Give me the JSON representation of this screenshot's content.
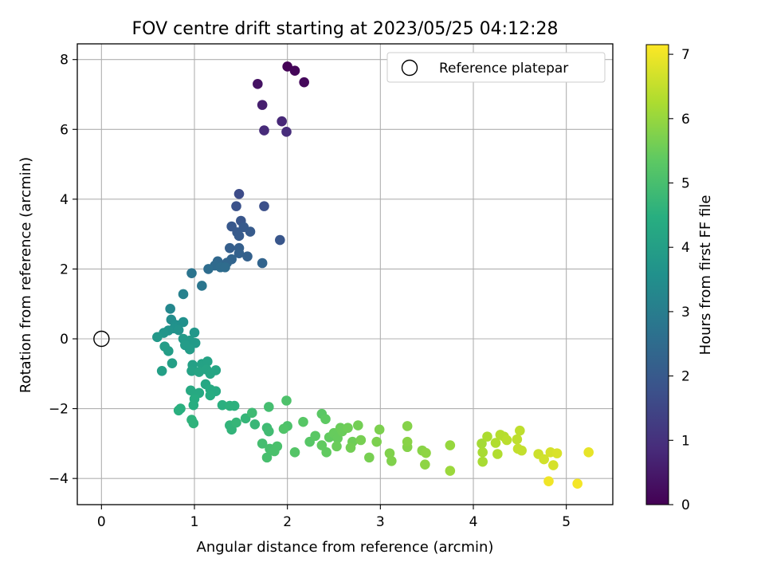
{
  "chart_data": {
    "type": "scatter",
    "title": "FOV centre drift starting at 2023/05/25 04:12:28",
    "xlabel": "Angular distance from reference (arcmin)",
    "ylabel": "Rotation from reference (arcmin)",
    "xlim": [
      -0.26,
      5.5
    ],
    "ylim": [
      -4.75,
      8.45
    ],
    "xticks": [
      0,
      1,
      2,
      3,
      4,
      5
    ],
    "yticks": [
      -4,
      -2,
      0,
      2,
      4,
      6,
      8
    ],
    "grid": true,
    "legend": {
      "entries": [
        "Reference platepar"
      ],
      "placement": "upper right"
    },
    "reference_point": {
      "x": 0,
      "y": 0,
      "label": "Reference platepar"
    },
    "colorbar": {
      "label": "Hours from first FF file",
      "range": [
        0,
        7.15
      ],
      "ticks": [
        0,
        1,
        2,
        3,
        4,
        5,
        6,
        7
      ],
      "colormap": "viridis"
    },
    "points": [
      [
        2.0,
        7.8,
        0.05
      ],
      [
        2.08,
        7.68,
        0.1
      ],
      [
        2.18,
        7.35,
        0.15
      ],
      [
        1.68,
        7.3,
        0.35
      ],
      [
        1.73,
        6.7,
        0.6
      ],
      [
        1.94,
        6.23,
        0.8
      ],
      [
        1.75,
        5.97,
        0.85
      ],
      [
        1.99,
        5.93,
        0.9
      ],
      [
        1.48,
        4.15,
        1.65
      ],
      [
        1.75,
        3.8,
        1.75
      ],
      [
        1.45,
        3.8,
        1.8
      ],
      [
        1.5,
        3.38,
        1.9
      ],
      [
        1.4,
        3.22,
        1.95
      ],
      [
        1.53,
        3.2,
        2.0
      ],
      [
        1.46,
        3.05,
        2.0
      ],
      [
        1.6,
        3.07,
        2.05
      ],
      [
        1.48,
        2.95,
        2.05
      ],
      [
        1.92,
        2.83,
        1.9
      ],
      [
        1.38,
        2.6,
        2.15
      ],
      [
        1.48,
        2.6,
        2.15
      ],
      [
        1.57,
        2.36,
        2.2
      ],
      [
        1.48,
        2.45,
        2.2
      ],
      [
        1.4,
        2.28,
        2.3
      ],
      [
        1.35,
        2.18,
        2.35
      ],
      [
        1.25,
        2.22,
        2.4
      ],
      [
        1.22,
        2.1,
        2.45
      ],
      [
        1.28,
        2.05,
        2.5
      ],
      [
        1.33,
        2.05,
        2.5
      ],
      [
        1.73,
        2.17,
        2.3
      ],
      [
        1.15,
        2.0,
        2.55
      ],
      [
        0.97,
        1.88,
        2.75
      ],
      [
        1.08,
        1.52,
        2.8
      ],
      [
        0.88,
        1.28,
        3.1
      ],
      [
        0.74,
        0.86,
        3.3
      ],
      [
        0.75,
        0.55,
        3.45
      ],
      [
        0.88,
        0.48,
        3.55
      ],
      [
        0.8,
        0.4,
        3.55
      ],
      [
        0.78,
        0.3,
        3.6
      ],
      [
        0.72,
        0.24,
        3.65
      ],
      [
        0.83,
        0.25,
        3.65
      ],
      [
        0.67,
        0.17,
        3.7
      ],
      [
        1.0,
        0.18,
        3.75
      ],
      [
        0.6,
        0.05,
        3.8
      ],
      [
        0.88,
        0.0,
        3.85
      ],
      [
        0.95,
        -0.05,
        3.85
      ],
      [
        1.01,
        -0.12,
        3.85
      ],
      [
        0.9,
        -0.18,
        3.9
      ],
      [
        0.95,
        -0.3,
        3.9
      ],
      [
        0.68,
        -0.22,
        3.95
      ],
      [
        0.72,
        -0.35,
        3.95
      ],
      [
        0.76,
        -0.7,
        4.0
      ],
      [
        0.65,
        -0.92,
        4.0
      ],
      [
        0.98,
        -0.75,
        4.05
      ],
      [
        1.08,
        -0.72,
        4.1
      ],
      [
        1.14,
        -0.65,
        4.1
      ],
      [
        0.97,
        -0.92,
        4.1
      ],
      [
        1.05,
        -0.95,
        4.15
      ],
      [
        1.13,
        -0.88,
        4.15
      ],
      [
        1.23,
        -0.9,
        4.2
      ],
      [
        1.17,
        -1.0,
        4.2
      ],
      [
        1.12,
        -1.3,
        4.25
      ],
      [
        0.96,
        -1.48,
        4.3
      ],
      [
        1.05,
        -1.55,
        4.3
      ],
      [
        1.17,
        -1.45,
        4.35
      ],
      [
        1.23,
        -1.5,
        4.35
      ],
      [
        1.17,
        -1.62,
        4.4
      ],
      [
        1.0,
        -1.72,
        4.4
      ],
      [
        0.99,
        -1.9,
        4.45
      ],
      [
        0.85,
        -2.0,
        4.5
      ],
      [
        0.83,
        -2.05,
        4.5
      ],
      [
        1.3,
        -1.9,
        4.5
      ],
      [
        1.38,
        -1.92,
        4.55
      ],
      [
        1.43,
        -1.92,
        4.55
      ],
      [
        0.97,
        -2.32,
        4.6
      ],
      [
        0.99,
        -2.42,
        4.6
      ],
      [
        1.38,
        -2.48,
        4.65
      ],
      [
        1.4,
        -2.6,
        4.65
      ],
      [
        1.45,
        -2.4,
        4.7
      ],
      [
        1.55,
        -2.28,
        4.7
      ],
      [
        1.65,
        -2.45,
        4.75
      ],
      [
        1.62,
        -2.12,
        4.85
      ],
      [
        1.78,
        -2.55,
        4.85
      ],
      [
        1.8,
        -2.65,
        4.9
      ],
      [
        1.8,
        -1.95,
        4.95
      ],
      [
        1.73,
        -3.0,
        4.95
      ],
      [
        1.81,
        -3.15,
        5.0
      ],
      [
        1.78,
        -3.4,
        5.0
      ],
      [
        1.86,
        -3.22,
        5.05
      ],
      [
        1.89,
        -3.08,
        5.05
      ],
      [
        1.99,
        -1.77,
        5.1
      ],
      [
        2.0,
        -2.5,
        5.1
      ],
      [
        1.96,
        -2.58,
        5.15
      ],
      [
        2.08,
        -3.25,
        5.2
      ],
      [
        2.17,
        -2.38,
        5.25
      ],
      [
        2.24,
        -2.95,
        5.25
      ],
      [
        2.3,
        -2.78,
        5.3
      ],
      [
        2.37,
        -2.15,
        5.3
      ],
      [
        2.41,
        -2.3,
        5.35
      ],
      [
        2.37,
        -3.05,
        5.4
      ],
      [
        2.42,
        -3.25,
        5.4
      ],
      [
        2.45,
        -2.82,
        5.4
      ],
      [
        2.5,
        -2.7,
        5.45
      ],
      [
        2.54,
        -2.85,
        5.45
      ],
      [
        2.57,
        -2.55,
        5.5
      ],
      [
        2.59,
        -2.65,
        5.5
      ],
      [
        2.53,
        -3.08,
        5.5
      ],
      [
        2.65,
        -2.55,
        5.55
      ],
      [
        2.7,
        -2.95,
        5.55
      ],
      [
        2.68,
        -3.12,
        5.6
      ],
      [
        2.76,
        -2.48,
        5.6
      ],
      [
        2.79,
        -2.9,
        5.65
      ],
      [
        2.88,
        -3.4,
        5.65
      ],
      [
        2.96,
        -2.95,
        5.7
      ],
      [
        2.99,
        -2.6,
        5.7
      ],
      [
        3.1,
        -3.28,
        5.75
      ],
      [
        3.12,
        -3.5,
        5.75
      ],
      [
        3.29,
        -3.1,
        5.8
      ],
      [
        3.29,
        -2.5,
        5.8
      ],
      [
        3.29,
        -2.95,
        5.85
      ],
      [
        3.45,
        -3.2,
        5.85
      ],
      [
        3.48,
        -3.6,
        5.9
      ],
      [
        3.49,
        -3.27,
        5.9
      ],
      [
        3.75,
        -3.05,
        6.0
      ],
      [
        3.75,
        -3.78,
        6.05
      ],
      [
        4.09,
        -3.0,
        6.15
      ],
      [
        4.1,
        -3.25,
        6.2
      ],
      [
        4.1,
        -3.52,
        6.2
      ],
      [
        4.15,
        -2.8,
        6.25
      ],
      [
        4.24,
        -2.98,
        6.3
      ],
      [
        4.26,
        -3.3,
        6.3
      ],
      [
        4.29,
        -2.75,
        6.35
      ],
      [
        4.33,
        -2.8,
        6.35
      ],
      [
        4.36,
        -2.9,
        6.4
      ],
      [
        4.47,
        -2.88,
        6.45
      ],
      [
        4.5,
        -2.63,
        6.45
      ],
      [
        4.48,
        -3.15,
        6.5
      ],
      [
        4.52,
        -3.2,
        6.5
      ],
      [
        4.7,
        -3.3,
        6.6
      ],
      [
        4.76,
        -3.45,
        6.65
      ],
      [
        4.83,
        -3.25,
        6.7
      ],
      [
        4.86,
        -3.62,
        6.7
      ],
      [
        4.9,
        -3.28,
        6.75
      ],
      [
        4.81,
        -4.08,
        7.0
      ],
      [
        5.12,
        -4.15,
        7.05
      ],
      [
        5.24,
        -3.25,
        6.9
      ]
    ]
  }
}
